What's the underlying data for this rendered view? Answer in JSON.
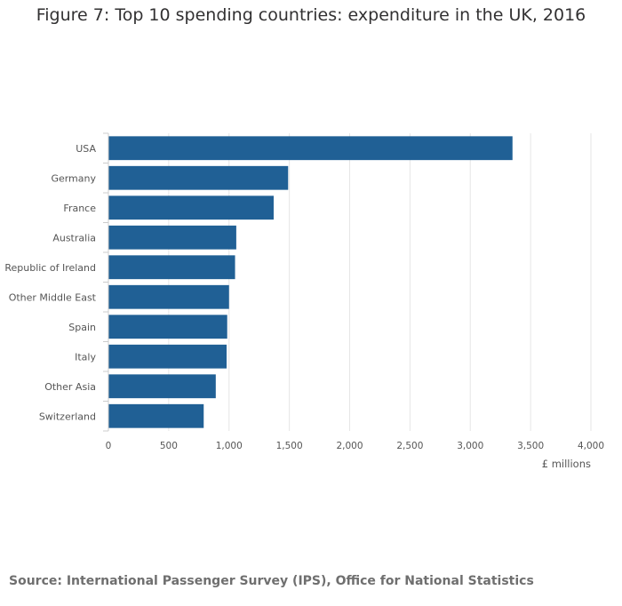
{
  "title": "Figure 7: Top 10 spending countries: expenditure in the UK, 2016",
  "source": "Source: International Passenger Survey (IPS), Office for National Statistics",
  "colors": {
    "bar": "#206095",
    "grid": "#e6e6e6",
    "axis": "#cccccc",
    "text": "#414042"
  },
  "chart_data": {
    "type": "bar",
    "orientation": "horizontal",
    "categories": [
      "USA",
      "Germany",
      "France",
      "Australia",
      "Republic of Ireland",
      "Other Middle East",
      "Spain",
      "Italy",
      "Other Asia",
      "Switzerland"
    ],
    "values": [
      3350,
      1490,
      1370,
      1060,
      1050,
      1000,
      985,
      980,
      890,
      790
    ],
    "xlabel": "£ millions",
    "ylabel": "",
    "xlim": [
      0,
      4000
    ],
    "xticks": [
      0,
      500,
      1000,
      1500,
      2000,
      2500,
      3000,
      3500,
      4000
    ],
    "xtick_labels": [
      "0",
      "500",
      "1,000",
      "1,500",
      "2,000",
      "2,500",
      "3,000",
      "3,500",
      "4,000"
    ],
    "grid": true,
    "legend": false
  }
}
